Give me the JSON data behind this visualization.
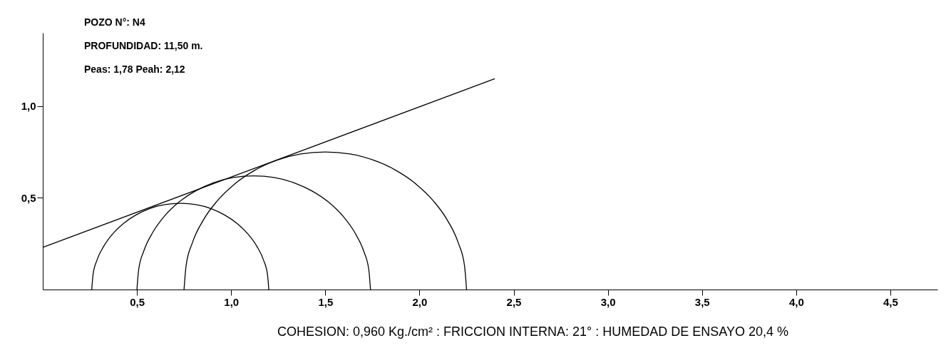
{
  "chart_data": {
    "type": "line",
    "annotations": [
      "POZO  N°: N4",
      "PROFUNDIDAD: 11,50 m.",
      "Peas: 1,78 Peah: 2,12",
      "COHESION: 0,960 Kg./cm² : FRICCION INTERNA: 21° : HUMEDAD DE ENSAYO 20,4 %"
    ],
    "series": [
      {
        "color": "#000000",
        "x": [
          0.26,
          0.267,
          0.288,
          0.323,
          0.37,
          0.428,
          0.495,
          0.569,
          0.648,
          0.73,
          0.812,
          0.891,
          0.965,
          1.032,
          1.09,
          1.137,
          1.172,
          1.193,
          1.2
        ],
        "values": [
          0,
          0.082,
          0.161,
          0.235,
          0.302,
          0.36,
          0.407,
          0.442,
          0.463,
          0.47,
          0.463,
          0.442,
          0.407,
          0.36,
          0.302,
          0.235,
          0.161,
          0.082,
          0
        ]
      },
      {
        "color": "#000000",
        "x": [
          0.5,
          0.509,
          0.537,
          0.583,
          0.645,
          0.721,
          0.81,
          0.908,
          1.012,
          1.12,
          1.228,
          1.332,
          1.43,
          1.519,
          1.595,
          1.657,
          1.703,
          1.731,
          1.74
        ],
        "values": [
          0,
          0.108,
          0.212,
          0.31,
          0.399,
          0.475,
          0.537,
          0.583,
          0.611,
          0.62,
          0.611,
          0.583,
          0.537,
          0.475,
          0.399,
          0.31,
          0.212,
          0.108,
          0
        ]
      },
      {
        "color": "#000000",
        "x": [
          0.75,
          0.761,
          0.795,
          0.85,
          0.925,
          1.018,
          1.125,
          1.243,
          1.369,
          1.5,
          1.631,
          1.757,
          1.875,
          1.982,
          2.075,
          2.15,
          2.205,
          2.239,
          2.25
        ],
        "values": [
          0,
          0.131,
          0.257,
          0.375,
          0.482,
          0.575,
          0.65,
          0.705,
          0.739,
          0.75,
          0.739,
          0.705,
          0.65,
          0.575,
          0.482,
          0.375,
          0.257,
          0.131,
          0
        ]
      },
      {
        "color": "#000000",
        "x": [
          0,
          2.4
        ],
        "values": [
          0.23,
          1.15
        ]
      }
    ],
    "xlim": [
      0,
      4.75
    ],
    "ylim": [
      0,
      1.4
    ],
    "xticks": [
      {
        "value": 0.5,
        "label": "0,5"
      },
      {
        "value": 1.0,
        "label": "1,0"
      },
      {
        "value": 1.5,
        "label": "1,5"
      },
      {
        "value": 2.0,
        "label": "2,0"
      },
      {
        "value": 2.5,
        "label": "2,5"
      },
      {
        "value": 3.0,
        "label": "3,0"
      },
      {
        "value": 3.5,
        "label": "3,5"
      },
      {
        "value": 4.0,
        "label": "4,0"
      },
      {
        "value": 4.5,
        "label": "4,5"
      }
    ],
    "yticks": [
      {
        "value": 0.5,
        "label": "0,5"
      },
      {
        "value": 1.0,
        "label": "1,0"
      }
    ],
    "grid": false
  }
}
